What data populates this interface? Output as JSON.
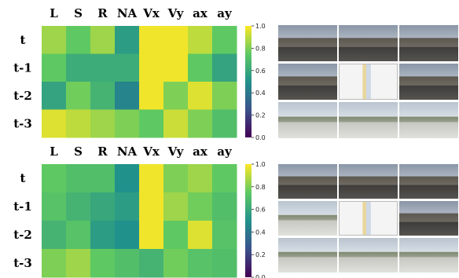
{
  "chart_data": [
    {
      "type": "heatmap",
      "columns": [
        "L",
        "S",
        "R",
        "NA",
        "Vx",
        "Vy",
        "ax",
        "ay"
      ],
      "rows": [
        "t",
        "t-1",
        "t-2",
        "t-3"
      ],
      "values": [
        [
          0.85,
          0.75,
          0.85,
          0.55,
          0.98,
          0.98,
          0.9,
          0.75
        ],
        [
          0.75,
          0.62,
          0.62,
          0.62,
          0.98,
          0.98,
          0.75,
          0.58
        ],
        [
          0.58,
          0.78,
          0.65,
          0.45,
          0.98,
          0.8,
          0.95,
          0.8
        ],
        [
          0.95,
          0.9,
          0.85,
          0.8,
          0.75,
          0.92,
          0.8,
          0.7
        ]
      ],
      "colorbar": {
        "min": 0.0,
        "max": 1.0,
        "ticks": [
          "0.0",
          "0.2",
          "0.4",
          "0.6",
          "0.8",
          "1.0"
        ]
      },
      "colormap": [
        "#440154",
        "#3b528b",
        "#21918c",
        "#5ec962",
        "#fde725"
      ]
    },
    {
      "type": "heatmap",
      "columns": [
        "L",
        "S",
        "R",
        "NA",
        "Vx",
        "Vy",
        "ax",
        "ay"
      ],
      "rows": [
        "t",
        "t-1",
        "t-2",
        "t-3"
      ],
      "values": [
        [
          0.75,
          0.7,
          0.7,
          0.5,
          0.98,
          0.8,
          0.85,
          0.75
        ],
        [
          0.72,
          0.65,
          0.6,
          0.55,
          0.98,
          0.85,
          0.78,
          0.7
        ],
        [
          0.65,
          0.72,
          0.55,
          0.5,
          0.98,
          0.75,
          0.95,
          0.72
        ],
        [
          0.8,
          0.85,
          0.75,
          0.7,
          0.65,
          0.78,
          0.72,
          0.7
        ]
      ],
      "colorbar": {
        "min": 0.0,
        "max": 1.0,
        "ticks": [
          "0.0",
          "0.2",
          "0.4",
          "0.6",
          "0.8",
          "1.0"
        ]
      },
      "colormap": [
        "#440154",
        "#3b528b",
        "#21918c",
        "#5ec962",
        "#fde725"
      ]
    }
  ],
  "thumbnail_sets": [
    {
      "name": "top",
      "rows": [
        [
          "city-street",
          "city-street",
          "city-street"
        ],
        [
          "city-street",
          "map",
          "city-street"
        ],
        [
          "intersection",
          "intersection",
          "intersection"
        ]
      ]
    },
    {
      "name": "bottom",
      "rows": [
        [
          "city-street",
          "city-street",
          "city-street"
        ],
        [
          "intersection",
          "map",
          "city-street"
        ],
        [
          "intersection",
          "intersection",
          "intersection"
        ]
      ]
    }
  ]
}
